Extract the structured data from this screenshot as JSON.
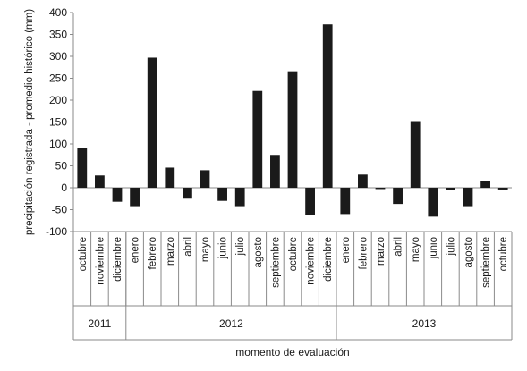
{
  "chart_data": {
    "type": "bar",
    "title": "",
    "ylabel": "precipitación registrada - promedio histórico (mm)",
    "xlabel": "momento de evaluación",
    "ylim": [
      -100,
      400
    ],
    "yticks": [
      400,
      350,
      300,
      250,
      200,
      150,
      100,
      50,
      0,
      -50,
      -100
    ],
    "grid": false,
    "legend": "none",
    "bar_color": "#1a1a1a",
    "categories": [
      "octubre",
      "noviembre",
      "diciembre",
      "enero",
      "febrero",
      "marzo",
      "abril",
      "mayo",
      "junio",
      "julio",
      "agosto",
      "septiembre",
      "octubre",
      "noviembre",
      "diciembre",
      "enero",
      "febrero",
      "marzo",
      "abril",
      "mayo",
      "junio",
      "julio",
      "agosto",
      "septiembre",
      "octubre"
    ],
    "values": [
      90,
      28,
      -32,
      -42,
      297,
      46,
      -25,
      40,
      -30,
      -42,
      221,
      75,
      266,
      -62,
      373,
      -60,
      30,
      -3,
      -37,
      152,
      -66,
      -5,
      -42,
      15,
      -4
    ],
    "groups": [
      {
        "label": "2011",
        "count": 3
      },
      {
        "label": "2012",
        "count": 12
      },
      {
        "label": "2013",
        "count": 10
      }
    ]
  }
}
